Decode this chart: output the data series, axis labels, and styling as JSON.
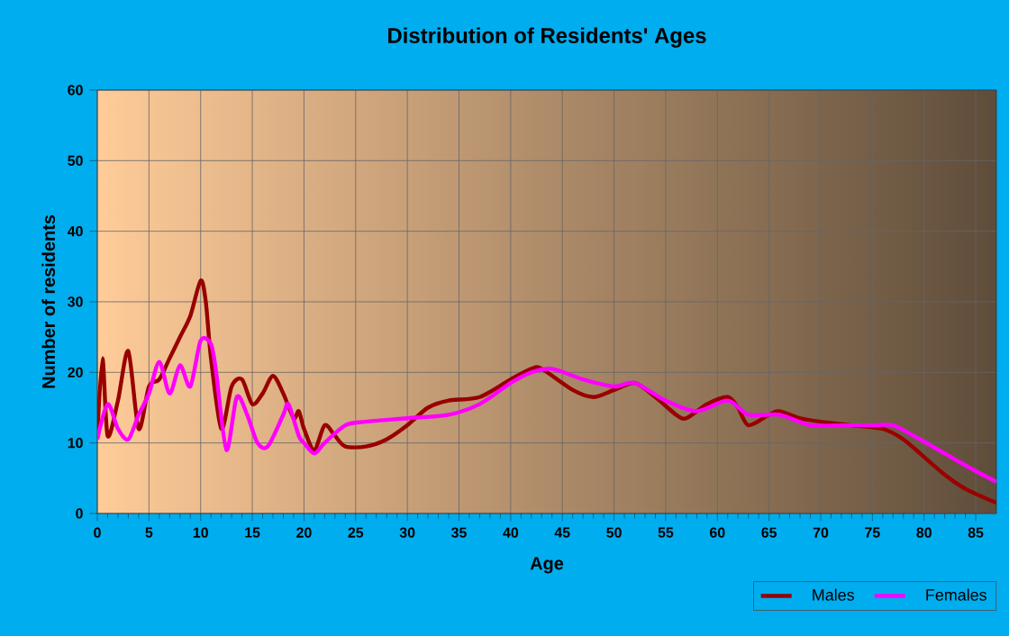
{
  "chart_data": {
    "type": "line",
    "title": "Distribution of Residents' Ages",
    "xlabel": "Age",
    "ylabel": "Number of residents",
    "xlim": [
      0,
      87
    ],
    "xticks": [
      0,
      5,
      10,
      15,
      20,
      25,
      30,
      35,
      40,
      45,
      50,
      55,
      60,
      65,
      70,
      75,
      80,
      85
    ],
    "ylim": [
      0,
      60
    ],
    "yticks": [
      0,
      10,
      20,
      30,
      40,
      50,
      60
    ],
    "grid": true,
    "legend": "bottom right",
    "marker": "none",
    "line_style": "solid",
    "series": [
      {
        "name": "Males",
        "color": "#990000",
        "x": [
          0,
          0.5,
          1,
          2,
          3,
          4,
          5,
          6,
          7,
          8,
          9,
          10,
          10.5,
          11,
          12,
          13,
          14,
          15,
          16,
          17,
          18,
          19,
          19.5,
          20,
          21,
          22,
          23,
          24,
          26,
          28,
          30,
          32,
          34,
          37,
          40,
          42,
          43,
          46,
          48,
          50,
          52,
          54,
          56,
          57,
          59,
          61,
          62,
          63,
          65,
          66,
          68,
          70,
          73,
          76,
          78,
          80,
          82,
          84,
          87
        ],
        "values": [
          11,
          22,
          11,
          16,
          23,
          12,
          18,
          19,
          22,
          25,
          28,
          33,
          30,
          22,
          12,
          18,
          19,
          15.5,
          17,
          19.5,
          17,
          13.5,
          14.5,
          12,
          9,
          12.5,
          11,
          9.5,
          9.5,
          10.5,
          12.5,
          15,
          16,
          16.5,
          19,
          20.5,
          20.5,
          17.5,
          16.5,
          17.5,
          18.5,
          16.5,
          14,
          13.5,
          15.5,
          16.5,
          15,
          12.5,
          14,
          14.5,
          13.5,
          13,
          12.5,
          12,
          10.5,
          8,
          5.5,
          3.5,
          1.5
        ]
      },
      {
        "name": "Females",
        "color": "#ff00ff",
        "x": [
          0,
          1,
          2,
          3,
          4,
          5,
          6,
          7,
          8,
          9,
          10,
          11,
          11.5,
          12.5,
          13.5,
          14.5,
          15.5,
          16.5,
          18,
          18.5,
          19.5,
          20,
          21,
          22,
          24,
          26,
          30,
          34,
          37,
          40,
          42,
          44,
          47,
          50,
          52,
          55,
          58,
          61,
          63,
          66,
          69,
          72,
          75,
          77,
          79,
          82,
          85,
          87
        ],
        "values": [
          10.5,
          15.5,
          12,
          10.5,
          14,
          17,
          21.5,
          17,
          21,
          18,
          24.5,
          24,
          20,
          9,
          16.5,
          14,
          10,
          9.5,
          14,
          15.5,
          11,
          10,
          8.5,
          10,
          12.5,
          13,
          13.5,
          14,
          15.5,
          18.5,
          20,
          20.5,
          19,
          18,
          18.5,
          16,
          14.5,
          16,
          14,
          14,
          12.5,
          12.5,
          12.5,
          12.5,
          11,
          8.5,
          6,
          4.5
        ]
      }
    ]
  }
}
